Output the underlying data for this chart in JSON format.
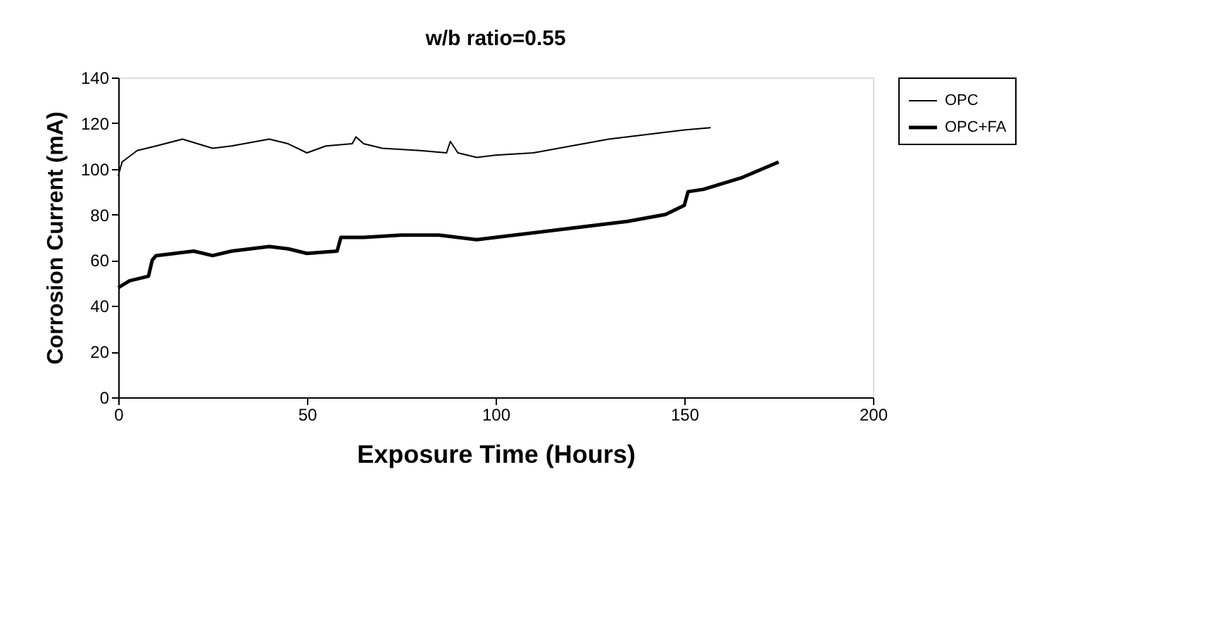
{
  "chart_data": {
    "type": "line",
    "title": "w/b ratio=0.55",
    "xlabel": "Exposure Time (Hours)",
    "ylabel": "Corrosion Current (mA)",
    "xlim": [
      0,
      200
    ],
    "xticks": [
      0,
      50,
      100,
      150,
      200
    ],
    "ylim": [
      0,
      140
    ],
    "yticks": [
      0,
      20,
      40,
      60,
      80,
      100,
      120,
      140
    ],
    "grid": false,
    "legend": "right",
    "marker": "none",
    "line_style": "solid",
    "series": [
      {
        "name": "OPC",
        "color": "#000000",
        "x": [
          0,
          1,
          5,
          10,
          17,
          25,
          30,
          40,
          45,
          50,
          55,
          62,
          63,
          65,
          70,
          80,
          87,
          88,
          90,
          95,
          100,
          110,
          120,
          130,
          140,
          150,
          157
        ],
        "values": [
          97,
          103,
          108,
          110,
          113,
          109,
          110,
          113,
          111,
          107,
          110,
          111,
          114,
          111,
          109,
          108,
          107,
          112,
          107,
          105,
          106,
          107,
          110,
          113,
          115,
          117,
          118
        ]
      },
      {
        "name": "OPC+FA",
        "color": "#000000",
        "x": [
          0,
          3,
          8,
          9,
          10,
          15,
          20,
          25,
          30,
          40,
          45,
          50,
          58,
          59,
          65,
          75,
          85,
          95,
          105,
          120,
          135,
          145,
          150,
          151,
          155,
          165,
          175
        ],
        "values": [
          48,
          51,
          53,
          60,
          62,
          63,
          64,
          62,
          64,
          66,
          65,
          63,
          64,
          70,
          70,
          71,
          71,
          69,
          71,
          74,
          77,
          80,
          84,
          90,
          91,
          96,
          103
        ]
      }
    ]
  }
}
